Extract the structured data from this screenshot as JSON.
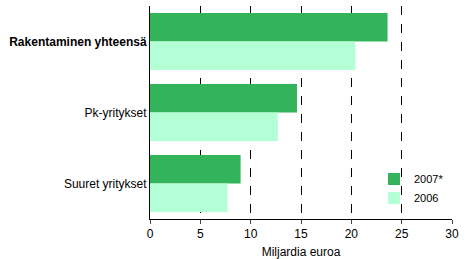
{
  "chart_data": {
    "type": "bar",
    "orientation": "horizontal",
    "categories": [
      "Rakentaminen yhteensä",
      "Pk-yritykset",
      "Suuret yritykset"
    ],
    "series": [
      {
        "name": "2007*",
        "color": "#33b35a",
        "values": [
          23.6,
          14.6,
          9.0
        ]
      },
      {
        "name": "2006",
        "color": "#b3ffd6",
        "values": [
          20.4,
          12.7,
          7.7
        ]
      }
    ],
    "xlabel": "Miljardia euroa",
    "xlim": [
      0,
      30
    ],
    "xticks": [
      0,
      5,
      10,
      15,
      20,
      25,
      30
    ],
    "grid": true,
    "legend": "bottom right"
  }
}
